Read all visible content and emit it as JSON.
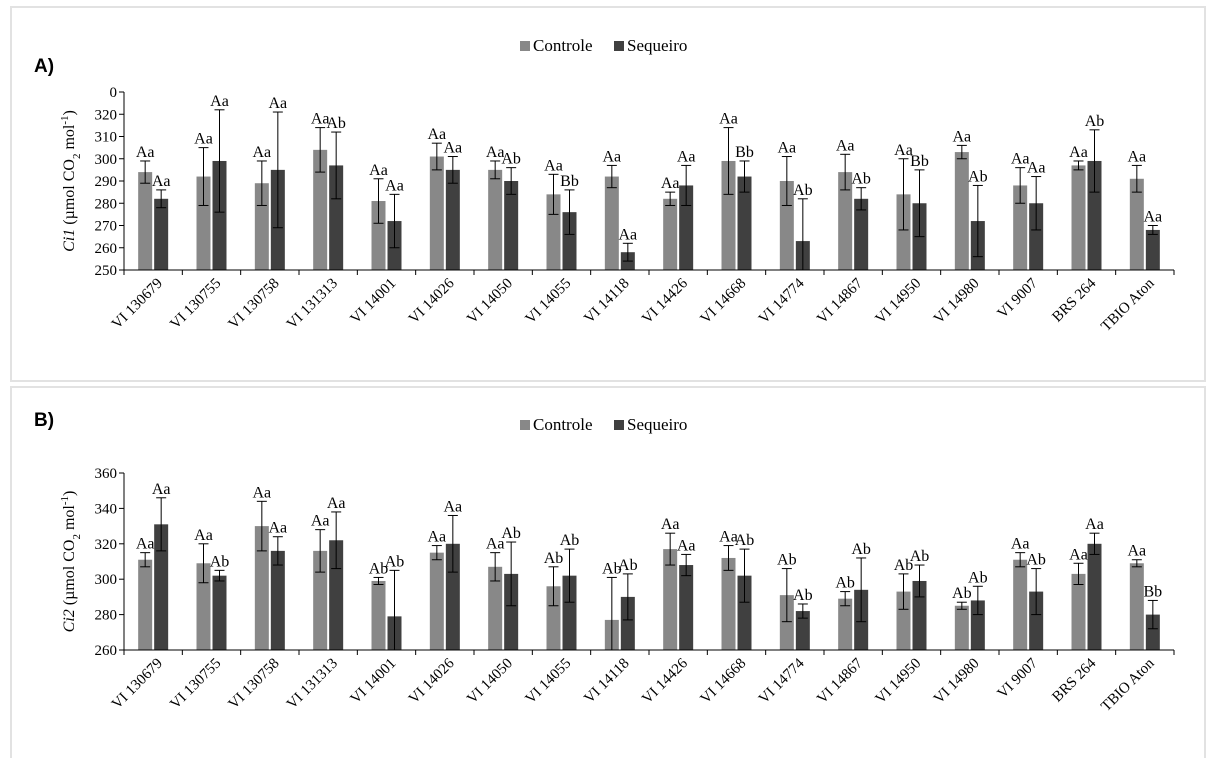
{
  "colors": {
    "controle": "#888888",
    "sequeiro": "#404040",
    "axis": "#000000"
  },
  "panels": [
    {
      "label": "A)",
      "legend": [
        "Controle",
        "Sequeiro"
      ],
      "ylabel_var": "Ci1",
      "ylabel_unit": " (µmol CO",
      "ylabel_sub": "2",
      "ylabel_tail": " mol",
      "ylabel_sup": "-1",
      "ylabel_close": ")"
    },
    {
      "label": "B)",
      "legend": [
        "Controle",
        "Sequeiro"
      ],
      "ylabel_var": "Ci2",
      "ylabel_unit": " (µmol CO",
      "ylabel_sub": "2",
      "ylabel_tail": " mol",
      "ylabel_sup": "-1",
      "ylabel_close": ")"
    }
  ],
  "chart_data": [
    {
      "type": "bar",
      "title": "",
      "ylabel": "Ci1 (µmol CO2 mol-1)",
      "ylim": [
        250,
        330
      ],
      "yticks": [
        250,
        260,
        270,
        280,
        290,
        300,
        310,
        320
      ],
      "top_tick_label": "0",
      "categories": [
        "VI 130679",
        "VI 130755",
        "VI 130758",
        "VI 131313",
        "VI 14001",
        "VI 14026",
        "VI 14050",
        "VI 14055",
        "VI 14118",
        "VI 14426",
        "VI 14668",
        "VI 14774",
        "VI 14867",
        "VI 14950",
        "VI 14980",
        "VI 9007",
        "BRS 264",
        "TBIO Aton"
      ],
      "series": [
        {
          "name": "Controle",
          "values": [
            294,
            292,
            289,
            304,
            281,
            301,
            295,
            284,
            292,
            282,
            299,
            290,
            294,
            284,
            303,
            288,
            297,
            291
          ],
          "errors": [
            5,
            13,
            10,
            10,
            10,
            6,
            4,
            9,
            5,
            3,
            15,
            11,
            8,
            16,
            3,
            8,
            2,
            6
          ],
          "labels": [
            "Aa",
            "Aa",
            "Aa",
            "Aa",
            "Aa",
            "Aa",
            "Aa",
            "Aa",
            "Aa",
            "Aa",
            "Aa",
            "Aa",
            "Aa",
            "Aa",
            "Aa",
            "Aa",
            "Aa",
            "Aa"
          ]
        },
        {
          "name": "Sequeiro",
          "values": [
            282,
            299,
            295,
            297,
            272,
            295,
            290,
            276,
            258,
            288,
            292,
            263,
            282,
            280,
            272,
            280,
            299,
            268
          ],
          "errors": [
            4,
            23,
            26,
            15,
            12,
            6,
            6,
            10,
            4,
            9,
            7,
            19,
            5,
            15,
            16,
            12,
            14,
            2
          ],
          "labels": [
            "Aa",
            "Aa",
            "Aa",
            "Ab",
            "Aa",
            "Aa",
            "Ab",
            "Bb",
            "Aa",
            "Aa",
            "Bb",
            "Ab",
            "Ab",
            "Bb",
            "Ab",
            "Aa",
            "Ab",
            "Aa"
          ]
        }
      ]
    },
    {
      "type": "bar",
      "title": "",
      "ylabel": "Ci2 (µmol CO2 mol-1)",
      "ylim": [
        260,
        360
      ],
      "yticks": [
        260,
        280,
        300,
        320,
        340,
        360
      ],
      "categories": [
        "VI 130679",
        "VI 130755",
        "VI 130758",
        "VI 131313",
        "VI 14001",
        "VI 14026",
        "VI 14050",
        "VI 14055",
        "VI 14118",
        "VI 14426",
        "VI 14668",
        "VI 14774",
        "VI 14867",
        "VI 14950",
        "VI 14980",
        "VI 9007",
        "BRS 264",
        "TBIO Aton"
      ],
      "series": [
        {
          "name": "Controle",
          "values": [
            311,
            309,
            330,
            316,
            299,
            315,
            307,
            296,
            277,
            317,
            312,
            291,
            289,
            293,
            285,
            311,
            303,
            309
          ],
          "errors": [
            4,
            11,
            14,
            12,
            2,
            4,
            8,
            11,
            24,
            9,
            7,
            15,
            4,
            10,
            2,
            4,
            6,
            2
          ],
          "labels": [
            "Aa",
            "Aa",
            "Aa",
            "Aa",
            "Ab",
            "Aa",
            "Aa",
            "Ab",
            "Ab",
            "Aa",
            "Aa",
            "Ab",
            "Ab",
            "Ab",
            "Ab",
            "Aa",
            "Aa",
            "Aa"
          ]
        },
        {
          "name": "Sequeiro",
          "values": [
            331,
            302,
            316,
            322,
            279,
            320,
            303,
            302,
            290,
            308,
            302,
            282,
            294,
            299,
            288,
            293,
            320,
            280
          ],
          "errors": [
            15,
            3,
            8,
            16,
            26,
            16,
            18,
            15,
            13,
            6,
            15,
            4,
            18,
            9,
            8,
            13,
            6,
            8
          ],
          "labels": [
            "Aa",
            "Ab",
            "Aa",
            "Aa",
            "Ab",
            "Aa",
            "Ab",
            "Ab",
            "Ab",
            "Aa",
            "Ab",
            "Ab",
            "Ab",
            "Ab",
            "Ab",
            "Ab",
            "Aa",
            "Bb"
          ]
        }
      ]
    }
  ]
}
